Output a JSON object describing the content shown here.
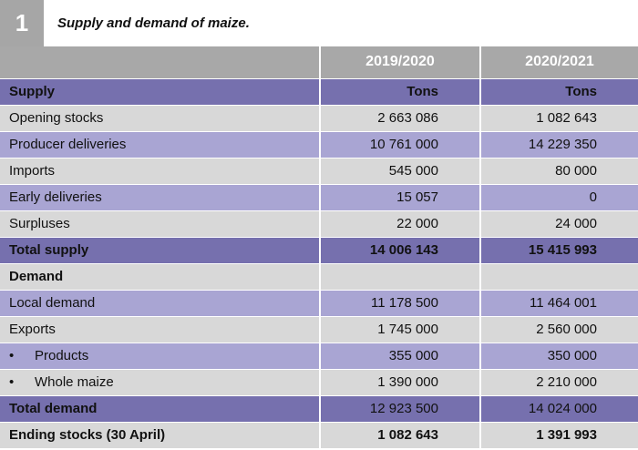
{
  "header": {
    "number": "1",
    "title": "Supply and demand of maize."
  },
  "columns": {
    "year1": "2019/2020",
    "year2": "2020/2021"
  },
  "rows": [
    {
      "label": "Supply",
      "v1": "Tons",
      "v2": "Tons"
    },
    {
      "label": "Opening stocks",
      "v1": "2 663 086",
      "v2": "1 082 643"
    },
    {
      "label": "Producer deliveries",
      "v1": "10 761 000",
      "v2": "14 229 350"
    },
    {
      "label": "Imports",
      "v1": "545 000",
      "v2": "80 000"
    },
    {
      "label": "Early deliveries",
      "v1": "15 057",
      "v2": "0"
    },
    {
      "label": "Surpluses",
      "v1": "22 000",
      "v2": "24 000"
    },
    {
      "label": "Total supply",
      "v1": "14 006 143",
      "v2": "15 415 993"
    },
    {
      "label": "Demand",
      "v1": "",
      "v2": ""
    },
    {
      "label": "Local demand",
      "v1": "11 178 500",
      "v2": "11 464 001"
    },
    {
      "label": "Exports",
      "v1": "1 745 000",
      "v2": "2 560 000"
    },
    {
      "bullet": "•",
      "label": "Products",
      "v1": "355 000",
      "v2": "350 000"
    },
    {
      "bullet": "•",
      "label": "Whole maize",
      "v1": "1 390 000",
      "v2": "2 210 000"
    },
    {
      "label": "Total demand",
      "v1": "12 923 500",
      "v2": "14 024 000"
    },
    {
      "label": "Ending stocks (30 April)",
      "v1": "1 082 643",
      "v2": "1 391 993"
    }
  ],
  "colors": {
    "header_gray": "#a8a8a8",
    "section_purple": "#7670ae",
    "row_light_purple": "#a9a5d3",
    "row_gray": "#d8d8d8",
    "badge_gray": "#a6a6a6"
  }
}
